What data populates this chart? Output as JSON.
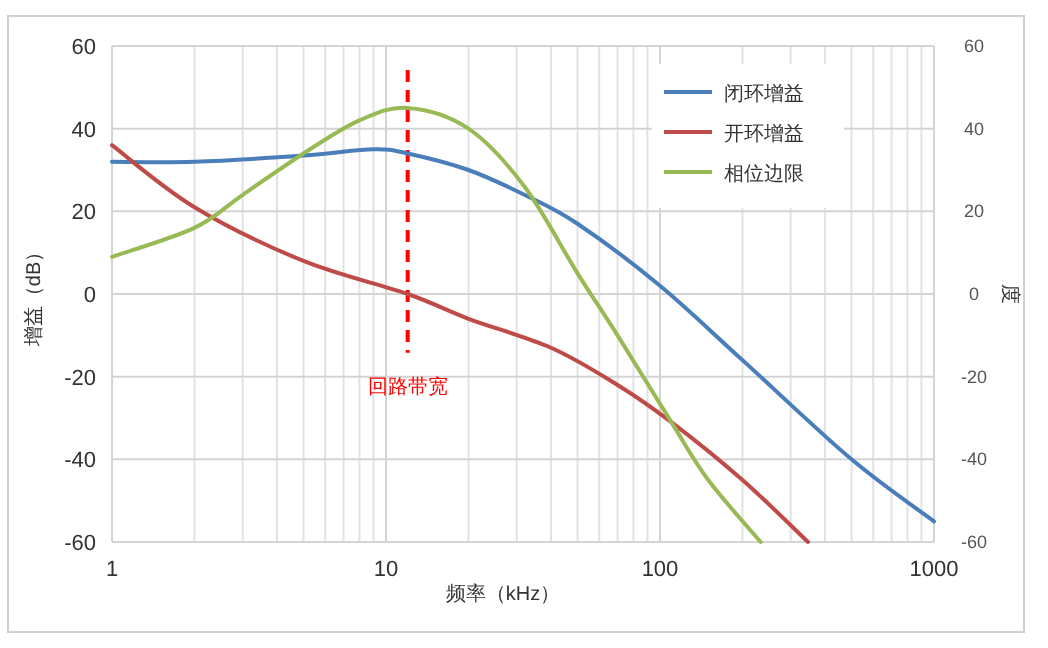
{
  "chart_data": {
    "type": "line",
    "xlabel": "频率（kHz）",
    "ylabel": "增益（dB）",
    "y2label": "度",
    "log": "x",
    "xlim": [
      1,
      1000
    ],
    "xticks": [
      1,
      10,
      100,
      1000
    ],
    "ylim": [
      -60,
      60
    ],
    "yticks": [
      -60,
      -40,
      -20,
      0,
      20,
      40,
      60
    ],
    "y2lim": [
      -60,
      60
    ],
    "y2ticks": [
      -60,
      -40,
      -20,
      0,
      20,
      40,
      60
    ],
    "grid": true,
    "legend": "top right",
    "line_style": "solid",
    "series": [
      {
        "name": "闭环增益",
        "color": "#4a7ebb",
        "x": [
          1,
          2,
          5,
          9,
          12,
          20,
          32,
          50,
          100,
          200,
          500,
          1000
        ],
        "values": [
          32,
          32,
          33.5,
          35,
          34,
          30,
          24,
          17,
          2,
          -16,
          -40,
          -55
        ]
      },
      {
        "name": "开环增益",
        "color": "#be4b48",
        "x": [
          1,
          2,
          5,
          12,
          20,
          40,
          70,
          110,
          200,
          347
        ],
        "values": [
          36,
          21,
          8,
          0,
          -6,
          -13,
          -22,
          -31,
          -45,
          -60
        ]
      },
      {
        "name": "相位边限",
        "color": "#98b954",
        "x": [
          1,
          2,
          3,
          5,
          8,
          12,
          20,
          32,
          50,
          70,
          110,
          150,
          233
        ],
        "values": [
          9,
          16,
          24,
          34,
          42,
          45,
          40,
          26,
          5,
          -10,
          -31,
          -45,
          -60
        ]
      }
    ],
    "ref_lines": [
      {
        "axis": "x",
        "value": 12,
        "label": "回路带宽",
        "color": "#ff0000",
        "line_style": "dashed"
      }
    ]
  }
}
